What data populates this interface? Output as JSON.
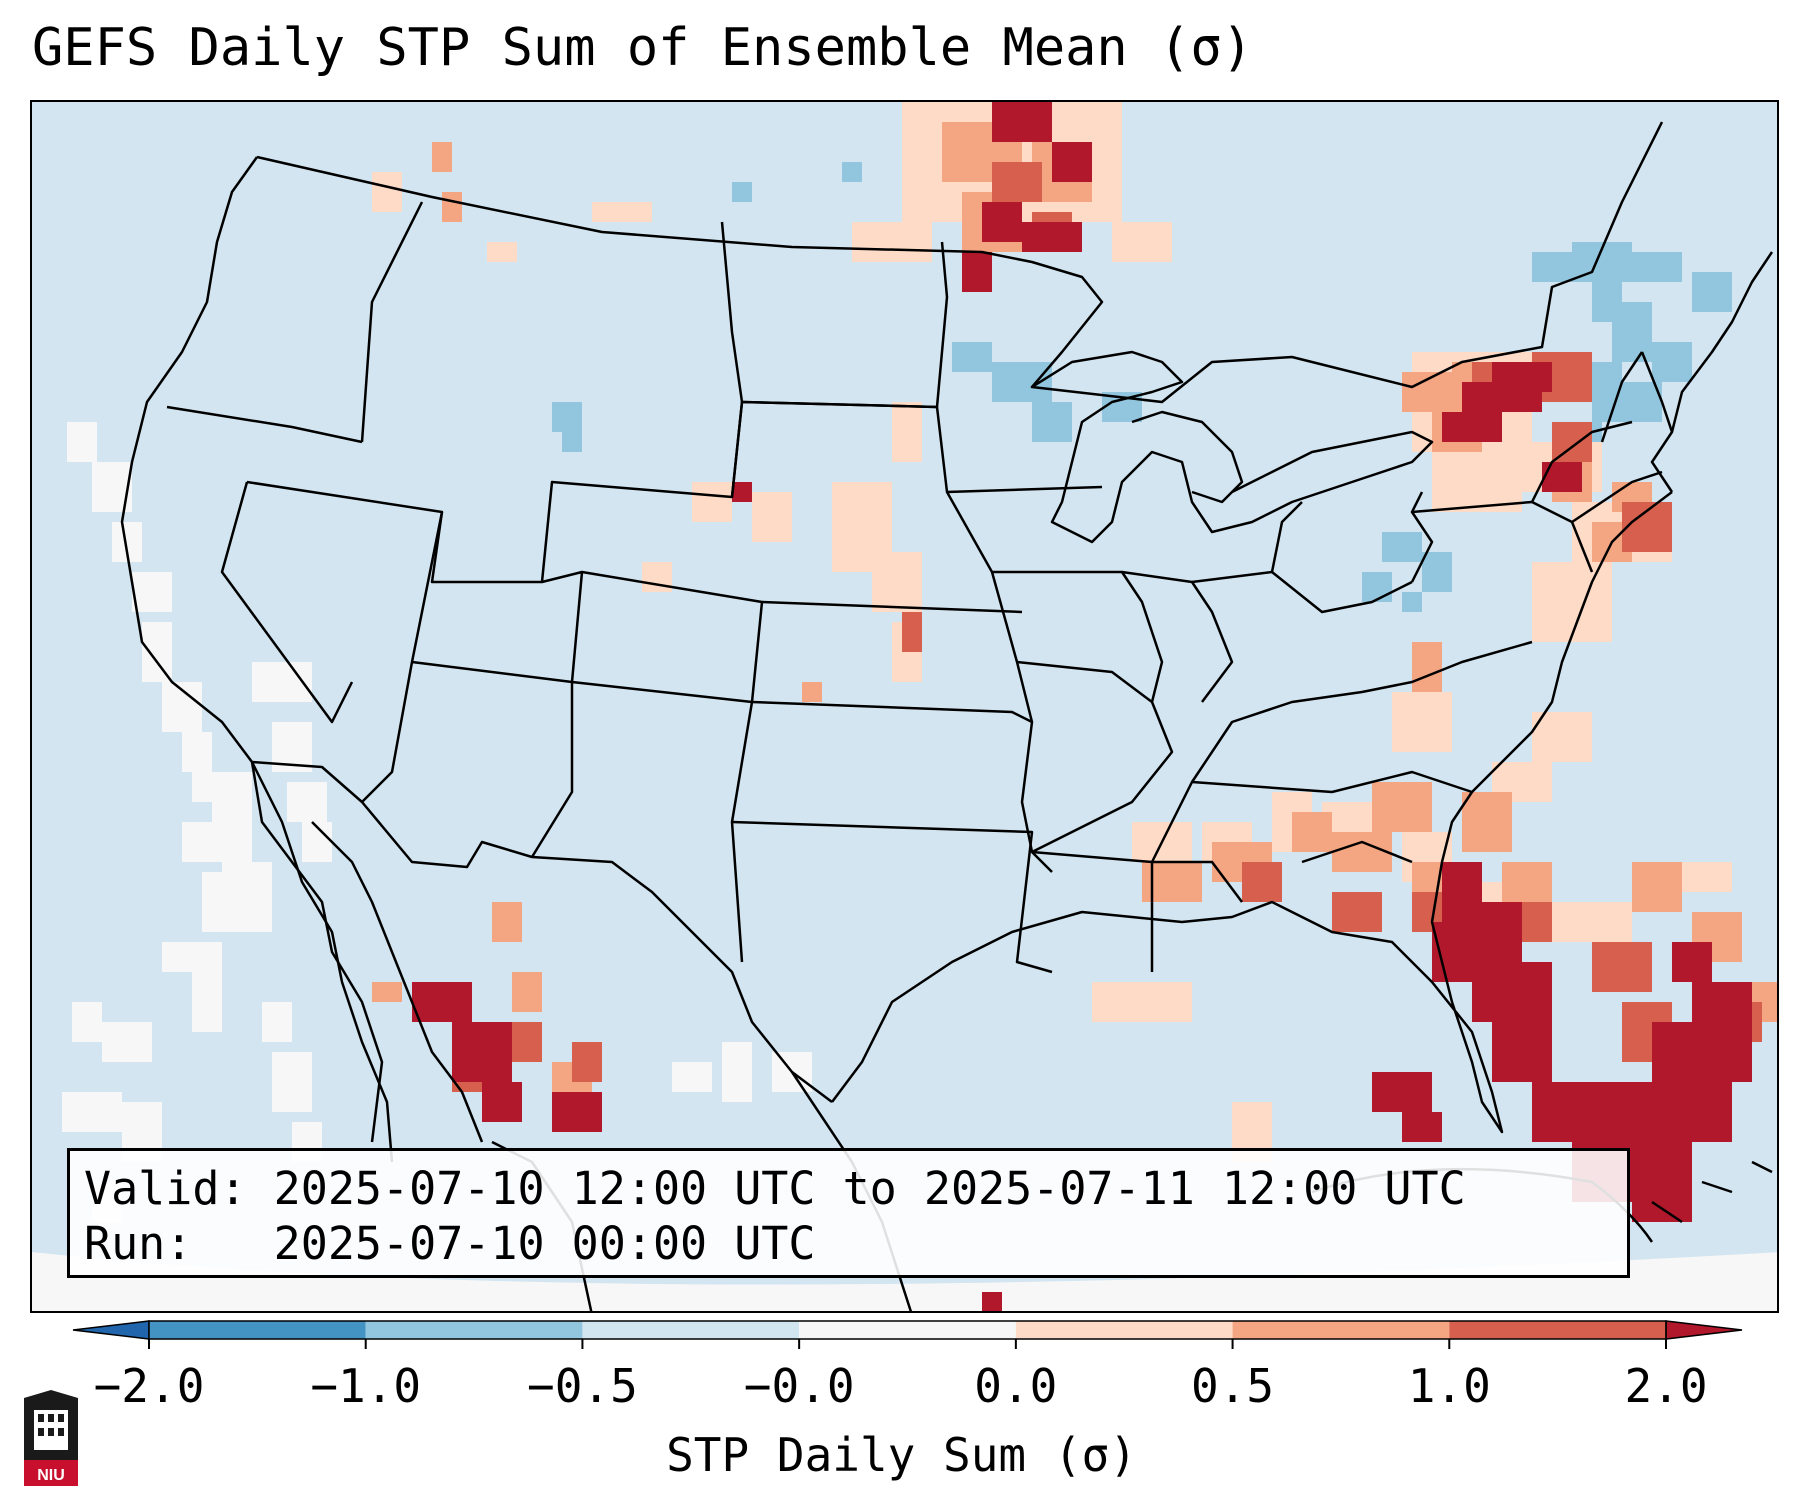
{
  "title": "GEFS Daily STP Sum of Ensemble Mean (σ)",
  "info": {
    "valid": "Valid: 2025-07-10 12:00 UTC to 2025-07-11 12:00 UTC",
    "run": "Run:   2025-07-10 00:00 UTC"
  },
  "colorbar": {
    "label": "STP Daily Sum (σ)",
    "ticks": [
      "−2.0",
      "−1.0",
      "−0.5",
      "−0.0",
      "0.0",
      "0.5",
      "1.0",
      "2.0"
    ],
    "colors": {
      "under": "#2166ac",
      "bins": [
        "#4393c3",
        "#92c5de",
        "#d1e5f0",
        "#f7f7f7",
        "#fddbc7",
        "#f4a582",
        "#d6604d"
      ],
      "over": "#b2182b"
    }
  },
  "map": {
    "projection": "Lambert Conformal (CONUS)",
    "background_value_color": "#d1e5f0",
    "regions_positive_anomaly": [
      "Florida / Southeast coast",
      "Georgia / South Carolina",
      "Upper Great Lakes / Manitoba border",
      "Northern New York / Ontario",
      "Sierra Madre Occidental (Mexico)",
      "Bahamas / western Atlantic"
    ],
    "regions_negative_anomaly": [
      "Maine / New Brunswick",
      "Northern Wisconsin",
      "Pennsylvania / West Virginia"
    ]
  },
  "logo": {
    "label": "NIU"
  }
}
